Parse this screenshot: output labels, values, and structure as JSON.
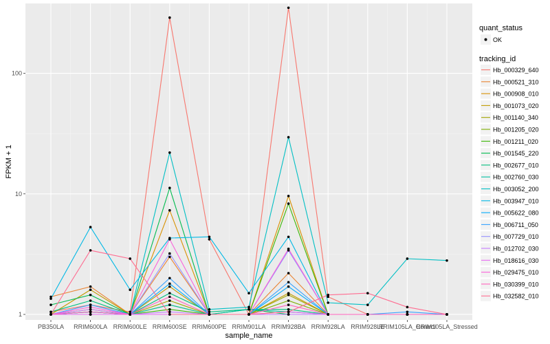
{
  "chart_data": {
    "type": "line",
    "xlabel": "sample_name",
    "ylabel": "FPKM + 1",
    "y_scale": "log10",
    "ylim": [
      0.9,
      380
    ],
    "y_ticks": [
      1,
      10,
      100
    ],
    "y_tick_labels": [
      "1",
      "10",
      "100"
    ],
    "grid": true,
    "legend_placement": "right",
    "categories": [
      "PB350LA",
      "RRIM600LA",
      "RRIM600LE",
      "RRIM600SE",
      "RRIM600PE",
      "RRIM901LA",
      "RRIM928BA",
      "RRIM928LA",
      "RRIM928LE",
      "RRIM105LA_Control",
      "RRIM105LA_Stressed"
    ],
    "shape_legend": {
      "title": "quant_status",
      "items": [
        {
          "label": "OK"
        }
      ]
    },
    "color_legend_title": "tracking_id",
    "series": [
      {
        "name": "Hb_000329_640",
        "color": "#F8766D",
        "values": [
          1.05,
          1.2,
          1.05,
          290,
          4.2,
          1.0,
          350,
          1.4,
          1.0,
          1.0,
          1.0
        ]
      },
      {
        "name": "Hb_000521_310",
        "color": "#EA8331",
        "values": [
          1.4,
          1.7,
          1.0,
          3.0,
          1.0,
          1.0,
          2.2,
          1.0,
          1.0,
          1.0,
          1.0
        ]
      },
      {
        "name": "Hb_000908_010",
        "color": "#D89000",
        "values": [
          1.0,
          1.1,
          1.0,
          7.3,
          1.0,
          1.0,
          9.6,
          1.0,
          1.0,
          1.0,
          1.0
        ]
      },
      {
        "name": "Hb_001073_020",
        "color": "#C09B00",
        "values": [
          1.0,
          1.6,
          1.0,
          1.7,
          1.0,
          1.0,
          1.5,
          1.0,
          1.0,
          1.0,
          1.0
        ]
      },
      {
        "name": "Hb_001140_340",
        "color": "#A3A500",
        "values": [
          1.0,
          1.05,
          1.0,
          1.3,
          1.0,
          1.0,
          1.45,
          1.0,
          1.0,
          1.0,
          1.0
        ]
      },
      {
        "name": "Hb_001205_020",
        "color": "#7CAE00",
        "values": [
          1.0,
          1.0,
          1.0,
          1.2,
          1.0,
          1.0,
          1.3,
          1.0,
          1.0,
          1.0,
          1.0
        ]
      },
      {
        "name": "Hb_001211_020",
        "color": "#39B600",
        "values": [
          1.0,
          1.05,
          1.0,
          1.1,
          1.0,
          1.0,
          8.3,
          1.0,
          1.0,
          1.0,
          1.0
        ]
      },
      {
        "name": "Hb_001545_220",
        "color": "#00BB4E",
        "values": [
          1.2,
          1.45,
          1.0,
          11.2,
          1.0,
          1.1,
          1.0,
          1.0,
          1.0,
          1.0,
          1.0
        ]
      },
      {
        "name": "Hb_002677_010",
        "color": "#00BF7D",
        "values": [
          1.05,
          1.3,
          1.0,
          1.5,
          1.05,
          1.1,
          1.1,
          1.0,
          1.0,
          1.0,
          1.0
        ]
      },
      {
        "name": "Hb_002760_030",
        "color": "#00C1A3",
        "values": [
          1.0,
          1.0,
          1.0,
          1.2,
          1.0,
          1.1,
          1.05,
          1.0,
          1.0,
          1.0,
          1.0
        ]
      },
      {
        "name": "Hb_003052_200",
        "color": "#00BFC4",
        "values": [
          1.0,
          1.05,
          1.0,
          22,
          1.1,
          1.15,
          29.5,
          1.25,
          1.2,
          2.9,
          2.8
        ]
      },
      {
        "name": "Hb_003947_010",
        "color": "#00B8E5",
        "values": [
          1.35,
          5.3,
          1.6,
          4.3,
          4.4,
          1.5,
          4.4,
          1.0,
          1.0,
          1.0,
          1.0
        ]
      },
      {
        "name": "Hb_005622_080",
        "color": "#00ACFC",
        "values": [
          1.0,
          1.05,
          1.0,
          1.8,
          1.0,
          1.0,
          1.7,
          1.0,
          1.0,
          1.0,
          1.0
        ]
      },
      {
        "name": "Hb_006711_050",
        "color": "#35A2FF",
        "values": [
          1.0,
          1.2,
          1.0,
          2.0,
          1.0,
          1.0,
          1.85,
          1.0,
          1.0,
          1.05,
          1.0
        ]
      },
      {
        "name": "Hb_007729_010",
        "color": "#9590FF",
        "values": [
          1.0,
          1.0,
          1.0,
          3.2,
          1.0,
          1.0,
          3.4,
          1.0,
          1.0,
          1.0,
          1.0
        ]
      },
      {
        "name": "Hb_012702_030",
        "color": "#C77CFF",
        "values": [
          1.0,
          1.1,
          1.0,
          1.05,
          1.0,
          1.0,
          1.0,
          1.0,
          1.0,
          1.0,
          1.0
        ]
      },
      {
        "name": "Hb_018616_030",
        "color": "#E76BF3",
        "values": [
          1.0,
          1.0,
          1.0,
          1.0,
          1.0,
          1.0,
          1.05,
          1.0,
          1.0,
          1.0,
          1.0
        ]
      },
      {
        "name": "Hb_029475_010",
        "color": "#FA62DB",
        "values": [
          1.0,
          1.15,
          1.0,
          4.2,
          1.0,
          1.0,
          3.5,
          1.0,
          1.0,
          1.0,
          1.0
        ]
      },
      {
        "name": "Hb_030399_010",
        "color": "#FF62BC",
        "values": [
          1.0,
          1.05,
          1.0,
          1.4,
          1.0,
          1.0,
          1.2,
          1.0,
          1.0,
          1.0,
          1.0
        ]
      },
      {
        "name": "Hb_032582_010",
        "color": "#FF6C91",
        "values": [
          1.0,
          3.4,
          2.9,
          1.0,
          1.0,
          1.0,
          1.05,
          1.45,
          1.5,
          1.15,
          1.0
        ]
      }
    ]
  }
}
